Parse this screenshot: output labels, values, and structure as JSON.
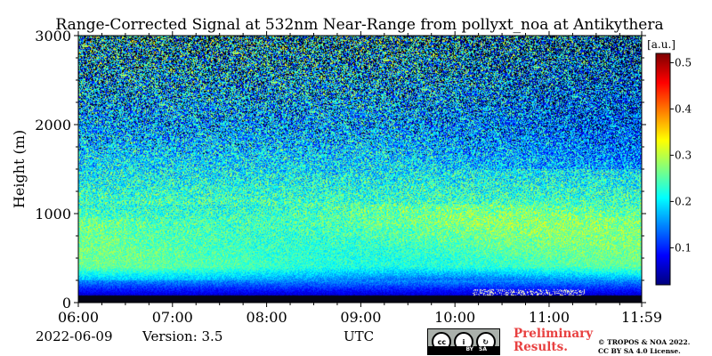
{
  "chart_data": {
    "type": "heatmap",
    "title": "Range-Corrected Signal at 532nm Near-Range from pollyxt_noa at Antikythera",
    "xlabel": "UTC",
    "ylabel": "Height (m)",
    "x_ticks": [
      "06:00",
      "07:00",
      "08:00",
      "09:00",
      "10:00",
      "11:00",
      "11:59"
    ],
    "x_range": [
      "06:00",
      "11:59"
    ],
    "y_ticks": [
      0,
      1000,
      2000,
      3000
    ],
    "ylim": [
      0,
      3000
    ],
    "colorbar": {
      "label": "[a.u.]",
      "ticks": [
        0.1,
        0.2,
        0.3,
        0.4,
        0.5
      ],
      "range": [
        0.02,
        0.52
      ],
      "colormap": "jet"
    },
    "description_rows": [
      {
        "height_m": 0,
        "signal": 0.02
      },
      {
        "height_m": 150,
        "signal": 0.1
      },
      {
        "height_m": 400,
        "signal": 0.24
      },
      {
        "height_m": 900,
        "signal": 0.26
      },
      {
        "height_m": 1500,
        "signal": 0.2
      },
      {
        "height_m": 2000,
        "signal": 0.17
      },
      {
        "height_m": 3000,
        "signal": 0.2
      }
    ]
  },
  "footer": {
    "date": "2022-06-09",
    "version": "Version: 3.5",
    "preliminary_line1": "Preliminary",
    "preliminary_line2": "Results.",
    "copyright_line1": "© TROPOS & NOA 2022.",
    "copyright_line2": "CC BY SA 4.0 License.",
    "cc_badge": "cc-by-sa-icon"
  }
}
